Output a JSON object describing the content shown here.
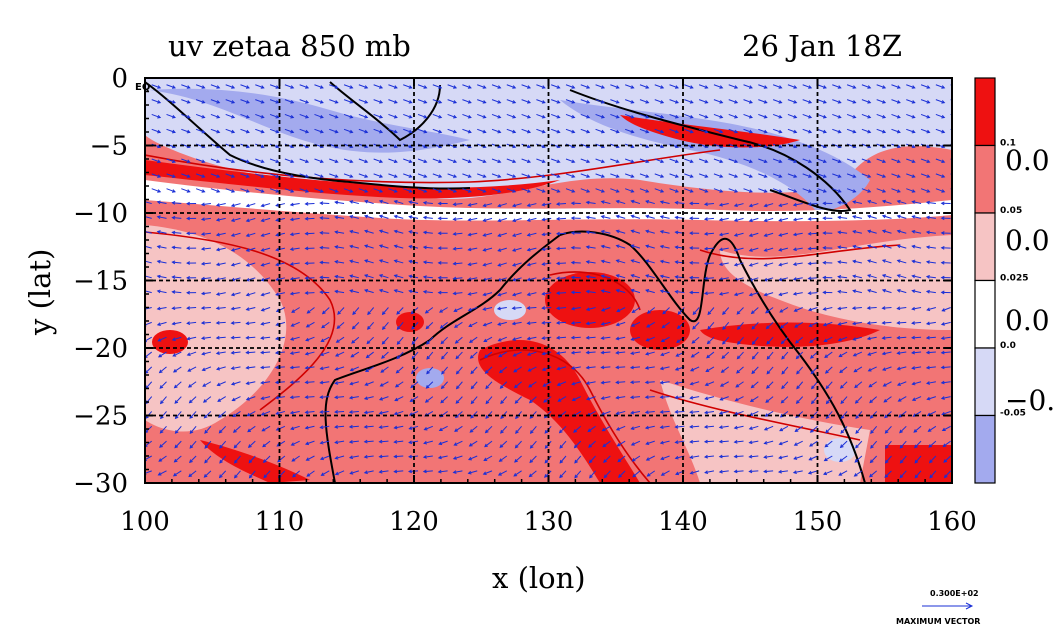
{
  "chart_data": {
    "type": "heatmap",
    "title": "uv zetaa 850 mb",
    "time_label": "26 Jan 18Z",
    "xlabel": "x (lon)",
    "ylabel": "y (lat)",
    "xlim": [
      100,
      160
    ],
    "ylim": [
      -30,
      0
    ],
    "x_ticks": [
      100,
      110,
      120,
      130,
      140,
      150,
      160
    ],
    "x_tick_labels": [
      "100",
      "110",
      "120",
      "130",
      "140",
      "150",
      "160"
    ],
    "y_ticks": [
      0,
      -5,
      -10,
      -15,
      -20,
      -25,
      -30
    ],
    "y_tick_labels": [
      "0",
      "−5",
      "−10",
      "−15",
      "−20",
      "−25",
      "−30"
    ],
    "y_top_label_suffix": "EQ",
    "grid": true,
    "grid_lon": [
      110,
      120,
      130,
      140,
      150
    ],
    "grid_lat": [
      -5,
      -10,
      -15,
      -20,
      -25
    ],
    "colorbar": {
      "labels": [
        "0.1",
        "0.05",
        "0.025",
        "0.0",
        "-0.05"
      ],
      "big_labels": [
        "0.0",
        "0.0",
        "0.0",
        "−0."
      ],
      "colors": [
        "#ee1111",
        "#f27575",
        "#f6c4c4",
        "#ffffff",
        "#d6d9f6",
        "#a3aaee"
      ]
    },
    "regions": [
      {
        "level": "negative",
        "lon": [
          100,
          160
        ],
        "lat": [
          -8,
          0
        ]
      },
      {
        "level": "moderate_positive",
        "lon": [
          100,
          160
        ],
        "lat": [
          -30,
          -8
        ]
      },
      {
        "level": "strong_positive",
        "lon": [
          120,
          146
        ],
        "lat": [
          -30,
          -12
        ]
      }
    ],
    "vector_legend": {
      "value": "0.300E+02",
      "label": "MAXIMUM VECTOR"
    }
  }
}
